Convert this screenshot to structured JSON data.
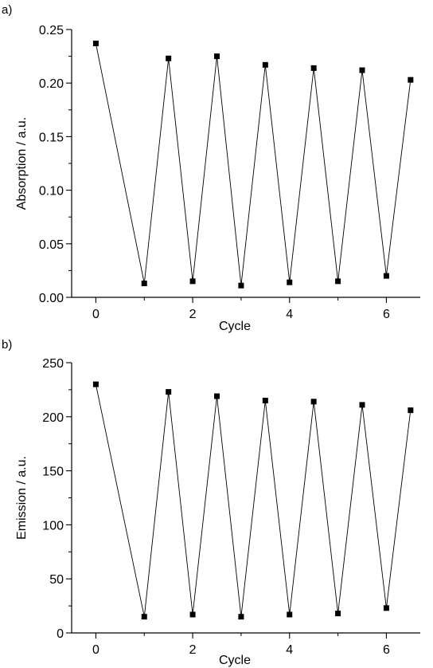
{
  "chart_data": [
    {
      "type": "line",
      "panel_label": "a)",
      "xlabel": "Cycle",
      "ylabel": "Absorption / a.u.",
      "xlim": [
        -0.5,
        6.7
      ],
      "ylim": [
        0.0,
        0.25
      ],
      "x_ticks": [
        0,
        2,
        4,
        6
      ],
      "x_tick_labels": [
        "0",
        "2",
        "4",
        "6"
      ],
      "y_ticks": [
        0.0,
        0.05,
        0.1,
        0.15,
        0.2,
        0.25
      ],
      "y_tick_labels": [
        "0.00",
        "0.05",
        "0.10",
        "0.15",
        "0.20",
        "0.25"
      ],
      "marker": "square",
      "line_color": "#000000",
      "series": [
        {
          "x": [
            0,
            1,
            1.5,
            2,
            2.5,
            3,
            3.5,
            4,
            4.5,
            5,
            5.5,
            6,
            6.5
          ],
          "values": [
            0.237,
            0.013,
            0.223,
            0.015,
            0.225,
            0.011,
            0.217,
            0.014,
            0.214,
            0.015,
            0.212,
            0.02,
            0.203
          ]
        }
      ]
    },
    {
      "type": "line",
      "panel_label": "b)",
      "xlabel": "Cycle",
      "ylabel": "Emission / a.u.",
      "xlim": [
        -0.5,
        6.7
      ],
      "ylim": [
        0,
        250
      ],
      "x_ticks": [
        0,
        2,
        4,
        6
      ],
      "x_tick_labels": [
        "0",
        "2",
        "4",
        "6"
      ],
      "y_ticks": [
        0,
        50,
        100,
        150,
        200,
        250
      ],
      "y_tick_labels": [
        "0",
        "50",
        "100",
        "150",
        "200",
        "250"
      ],
      "marker": "square",
      "line_color": "#000000",
      "series": [
        {
          "x": [
            0,
            1,
            1.5,
            2,
            2.5,
            3,
            3.5,
            4,
            4.5,
            5,
            5.5,
            6,
            6.5
          ],
          "values": [
            230,
            15,
            223,
            17,
            219,
            15,
            215,
            17,
            214,
            18,
            211,
            23,
            206
          ]
        }
      ]
    }
  ]
}
